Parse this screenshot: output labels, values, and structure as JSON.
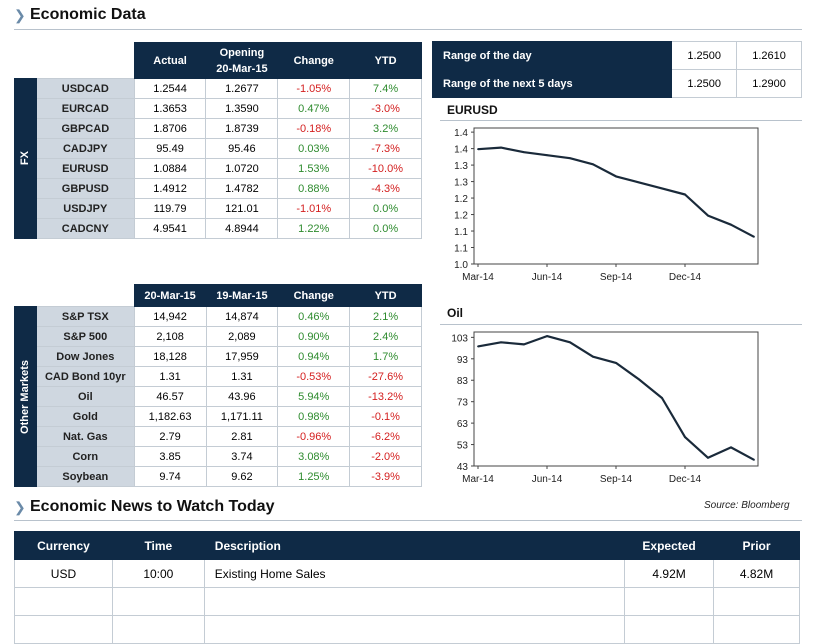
{
  "economic_data": {
    "title": "Economic Data"
  },
  "fx": {
    "side_label": "FX",
    "headers": [
      "Actual",
      "Opening\n20-Mar-15",
      "Change",
      "YTD"
    ],
    "rows": [
      {
        "name": "USDCAD",
        "actual": "1.2544",
        "opening": "1.2677",
        "change": "-1.05%",
        "ytd": "7.4%",
        "change_sign": "neg",
        "ytd_sign": "pos"
      },
      {
        "name": "EURCAD",
        "actual": "1.3653",
        "opening": "1.3590",
        "change": "0.47%",
        "ytd": "-3.0%",
        "change_sign": "pos",
        "ytd_sign": "neg"
      },
      {
        "name": "GBPCAD",
        "actual": "1.8706",
        "opening": "1.8739",
        "change": "-0.18%",
        "ytd": "3.2%",
        "change_sign": "neg",
        "ytd_sign": "pos"
      },
      {
        "name": "CADJPY",
        "actual": "95.49",
        "opening": "95.46",
        "change": "0.03%",
        "ytd": "-7.3%",
        "change_sign": "pos",
        "ytd_sign": "neg"
      },
      {
        "name": "EURUSD",
        "actual": "1.0884",
        "opening": "1.0720",
        "change": "1.53%",
        "ytd": "-10.0%",
        "change_sign": "pos",
        "ytd_sign": "neg"
      },
      {
        "name": "GBPUSD",
        "actual": "1.4912",
        "opening": "1.4782",
        "change": "0.88%",
        "ytd": "-4.3%",
        "change_sign": "pos",
        "ytd_sign": "neg"
      },
      {
        "name": "USDJPY",
        "actual": "119.79",
        "opening": "121.01",
        "change": "-1.01%",
        "ytd": "0.0%",
        "change_sign": "neg",
        "ytd_sign": "pos"
      },
      {
        "name": "CADCNY",
        "actual": "4.9541",
        "opening": "4.8944",
        "change": "1.22%",
        "ytd": "0.0%",
        "change_sign": "pos",
        "ytd_sign": "pos"
      }
    ]
  },
  "markets": {
    "side_label": "Other Markets",
    "headers": [
      "20-Mar-15",
      "19-Mar-15",
      "Change",
      "YTD"
    ],
    "rows": [
      {
        "name": "S&P TSX",
        "current": "14,942",
        "previous": "14,874",
        "change": "0.46%",
        "ytd": "2.1%",
        "change_sign": "pos",
        "ytd_sign": "pos"
      },
      {
        "name": "S&P 500",
        "current": "2,108",
        "previous": "2,089",
        "change": "0.90%",
        "ytd": "2.4%",
        "change_sign": "pos",
        "ytd_sign": "pos"
      },
      {
        "name": "Dow Jones",
        "current": "18,128",
        "previous": "17,959",
        "change": "0.94%",
        "ytd": "1.7%",
        "change_sign": "pos",
        "ytd_sign": "pos"
      },
      {
        "name": "CAD Bond 10yr",
        "current": "1.31",
        "previous": "1.31",
        "change": "-0.53%",
        "ytd": "-27.6%",
        "change_sign": "neg",
        "ytd_sign": "neg"
      },
      {
        "name": "Oil",
        "current": "46.57",
        "previous": "43.96",
        "change": "5.94%",
        "ytd": "-13.2%",
        "change_sign": "pos",
        "ytd_sign": "neg"
      },
      {
        "name": "Gold",
        "current": "1,182.63",
        "previous": "1,171.11",
        "change": "0.98%",
        "ytd": "-0.1%",
        "change_sign": "pos",
        "ytd_sign": "neg"
      },
      {
        "name": "Nat. Gas",
        "current": "2.79",
        "previous": "2.81",
        "change": "-0.96%",
        "ytd": "-6.2%",
        "change_sign": "neg",
        "ytd_sign": "neg"
      },
      {
        "name": "Corn",
        "current": "3.85",
        "previous": "3.74",
        "change": "3.08%",
        "ytd": "-2.0%",
        "change_sign": "pos",
        "ytd_sign": "neg"
      },
      {
        "name": "Soybean",
        "current": "9.74",
        "previous": "9.62",
        "change": "1.25%",
        "ytd": "-3.9%",
        "change_sign": "pos",
        "ytd_sign": "neg"
      }
    ]
  },
  "range": {
    "rows": [
      {
        "label": "Range of the day",
        "low": "1.2500",
        "high": "1.2610"
      },
      {
        "label": "Range of the next 5 days",
        "low": "1.2500",
        "high": "1.2900"
      }
    ]
  },
  "colors": {
    "header_navy": "#0f2a46",
    "label_gray": "#cfd7e0",
    "positive": "#2e8b2e",
    "negative": "#d42020",
    "line": "#1a2a3a"
  },
  "chart_data": [
    {
      "type": "line",
      "title": "EURUSD",
      "xlabel": "",
      "ylabel": "",
      "x_ticks": [
        "Mar-14",
        "Jun-14",
        "Sep-14",
        "Dec-14"
      ],
      "y_ticks": [
        "1.0",
        "1.1",
        "1.1",
        "1.2",
        "1.2",
        "1.3",
        "1.3",
        "1.4",
        "1.4"
      ],
      "ylim": [
        1.0,
        1.45
      ],
      "x": [
        "2014-03",
        "2014-04",
        "2014-05",
        "2014-06",
        "2014-07",
        "2014-08",
        "2014-09",
        "2014-10",
        "2014-11",
        "2014-12",
        "2015-01",
        "2015-02",
        "2015-03"
      ],
      "series": [
        {
          "values": [
            1.38,
            1.385,
            1.37,
            1.36,
            1.35,
            1.33,
            1.29,
            1.27,
            1.25,
            1.23,
            1.16,
            1.13,
            1.09
          ]
        }
      ],
      "grid": false
    },
    {
      "type": "line",
      "title": "Oil",
      "xlabel": "",
      "ylabel": "",
      "x_ticks": [
        "Mar-14",
        "Jun-14",
        "Sep-14",
        "Dec-14"
      ],
      "y_ticks": [
        "43",
        "53",
        "63",
        "73",
        "83",
        "93",
        "103"
      ],
      "ylim": [
        43,
        108
      ],
      "x": [
        "2014-03",
        "2014-04",
        "2014-05",
        "2014-06",
        "2014-07",
        "2014-08",
        "2014-09",
        "2014-10",
        "2014-11",
        "2014-12",
        "2015-01",
        "2015-02",
        "2015-03"
      ],
      "series": [
        {
          "values": [
            101,
            103,
            102,
            106,
            103,
            96,
            93,
            85,
            76,
            57,
            47,
            52,
            46
          ]
        }
      ],
      "grid": false
    }
  ],
  "news": {
    "title": "Economic News to Watch Today",
    "source": "Source: Bloomberg",
    "headers": [
      "Currency",
      "Time",
      "Description",
      "Expected",
      "Prior"
    ],
    "rows": [
      {
        "currency": "USD",
        "time": "10:00",
        "description": "Existing Home Sales",
        "expected": "4.92M",
        "prior": "4.82M"
      },
      {
        "currency": "",
        "time": "",
        "description": "",
        "expected": "",
        "prior": ""
      },
      {
        "currency": "",
        "time": "",
        "description": "",
        "expected": "",
        "prior": ""
      }
    ]
  }
}
